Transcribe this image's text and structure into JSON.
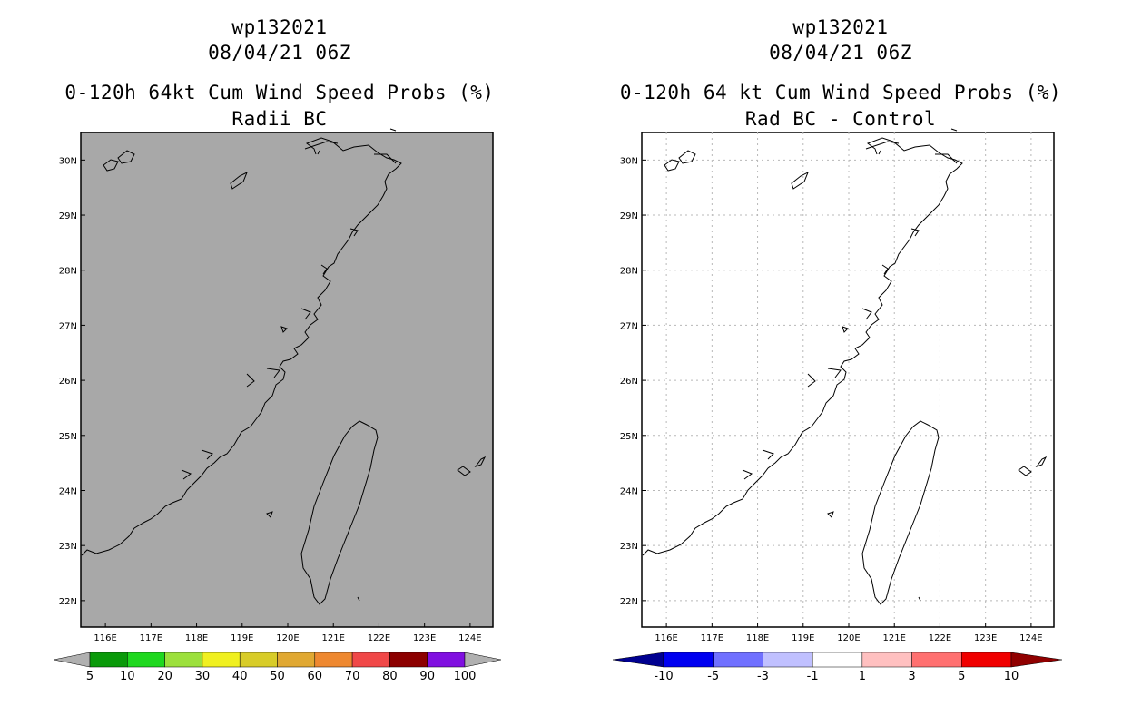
{
  "left": {
    "title_line1": "wp132021",
    "title_line2": "08/04/21 06Z",
    "title_line3": "0-120h 64kt Cum Wind Speed Probs (%)",
    "title_line4": "Radii BC",
    "lon_labels": [
      "116E",
      "117E",
      "118E",
      "119E",
      "120E",
      "121E",
      "122E",
      "123E",
      "124E"
    ],
    "lat_labels": [
      "30N",
      "29N",
      "28N",
      "27N",
      "26N",
      "25N",
      "24N",
      "23N",
      "22N"
    ],
    "colorbar": {
      "labels": [
        "5",
        "10",
        "20",
        "30",
        "40",
        "50",
        "60",
        "70",
        "80",
        "90",
        "100"
      ],
      "colors": [
        "#b0b0b0",
        "#0a9a0a",
        "#1fd81f",
        "#9ce03c",
        "#f0f020",
        "#d8cc28",
        "#e0a832",
        "#ee8830",
        "#f04848",
        "#8c0000",
        "#8010e0",
        "#b0b0b0"
      ]
    },
    "field_color": "#a8a8a8"
  },
  "right": {
    "title_line1": "wp132021",
    "title_line2": "08/04/21 06Z",
    "title_line3": "0-120h 64 kt Cum Wind Speed Probs (%)",
    "title_line4": "Rad BC - Control",
    "lon_labels": [
      "116E",
      "117E",
      "118E",
      "119E",
      "120E",
      "121E",
      "122E",
      "123E",
      "124E"
    ],
    "lat_labels": [
      "30N",
      "29N",
      "28N",
      "27N",
      "26N",
      "25N",
      "24N",
      "23N",
      "22N"
    ],
    "colorbar": {
      "labels": [
        "-10",
        "-5",
        "-3",
        "-1",
        "1",
        "3",
        "5",
        "10"
      ],
      "colors": [
        "#000090",
        "#0000f0",
        "#7070ff",
        "#c0c0ff",
        "#ffffff",
        "#ffc0c0",
        "#ff7070",
        "#f00000",
        "#900000"
      ]
    },
    "field_color": "#ffffff"
  }
}
